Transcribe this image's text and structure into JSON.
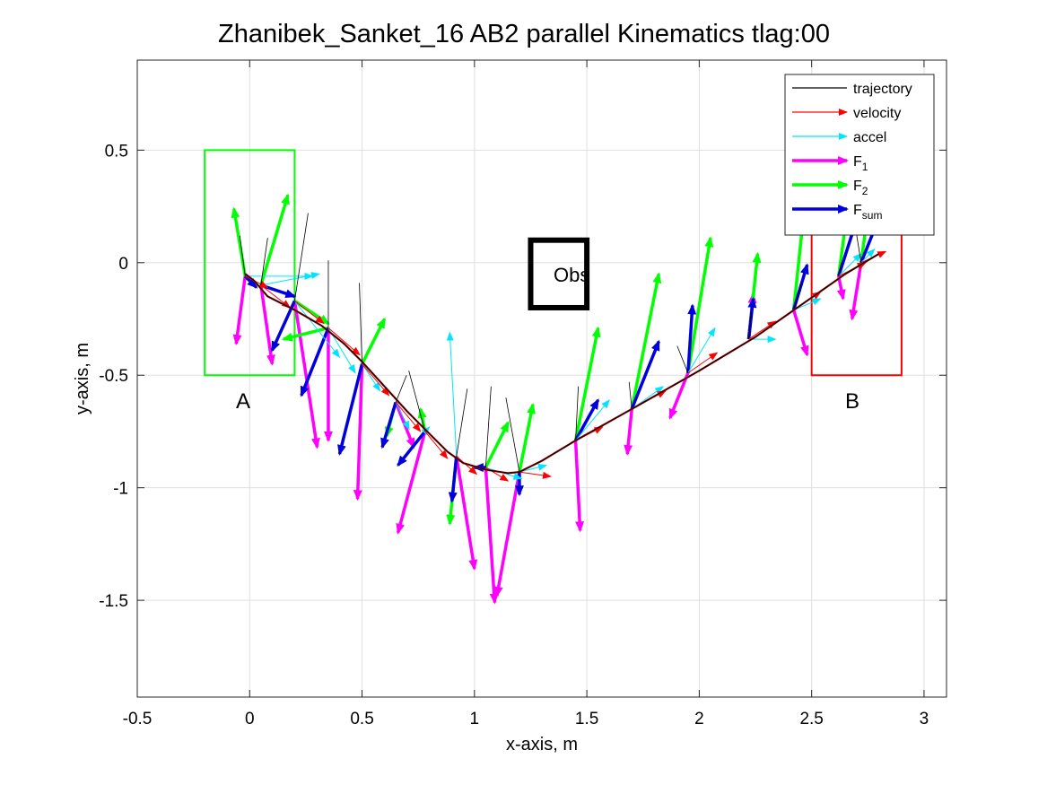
{
  "chart_data": {
    "type": "line",
    "title": "Zhanibek_Sanket_16    AB2    parallel    Kinematics tlag:00",
    "xlabel": "x-axis, m",
    "ylabel": "y-axis, m",
    "xlim": [
      -0.5,
      3.1
    ],
    "ylim": [
      -1.93,
      0.9
    ],
    "xticks": [
      -0.5,
      0,
      0.5,
      1,
      1.5,
      2,
      2.5,
      3
    ],
    "xtick_labels": [
      "-0.5",
      "0",
      "0.5",
      "1",
      "1.5",
      "2",
      "2.5",
      "3"
    ],
    "yticks": [
      -1.5,
      -1,
      -0.5,
      0,
      0.5
    ],
    "ytick_labels": [
      "-1.5",
      "-1",
      "-0.5",
      "0",
      "0.5"
    ],
    "grid": true,
    "legend": {
      "placement": "top-right",
      "entries": [
        {
          "key": "trajectory",
          "label": "trajectory",
          "sub": "",
          "color": "#000000"
        },
        {
          "key": "velocity",
          "label": "velocity",
          "sub": "",
          "color": "#ff0000"
        },
        {
          "key": "accel",
          "label": "accel",
          "sub": "",
          "color": "#00e5ff"
        },
        {
          "key": "F1",
          "label": "F",
          "sub": "1",
          "color": "#ff00ff"
        },
        {
          "key": "F2",
          "label": "F",
          "sub": "2",
          "color": "#00ff00"
        },
        {
          "key": "Fsum",
          "label": "F",
          "sub": "sum",
          "color": "#0000dd"
        }
      ]
    },
    "regions": [
      {
        "name": "start-box",
        "x": [
          -0.2,
          0.2
        ],
        "y": [
          -0.5,
          0.5
        ],
        "color": "#00ff00"
      },
      {
        "name": "goal-box",
        "x": [
          2.5,
          2.9
        ],
        "y": [
          -0.5,
          0.15
        ],
        "color": "#ff0000"
      },
      {
        "name": "obstacle",
        "x": [
          1.25,
          1.5
        ],
        "y": [
          -0.2,
          0.1
        ],
        "color": "#000000"
      }
    ],
    "annotations": [
      {
        "key": "A",
        "text": "A",
        "x": -0.04,
        "y": -0.61
      },
      {
        "key": "B",
        "text": "B",
        "x": 2.66,
        "y": -0.61
      },
      {
        "key": "Obs",
        "text": "Obs",
        "x": 1.36,
        "y": -0.05
      }
    ],
    "trajectory": {
      "x": [
        -0.02,
        0.02,
        0.08,
        0.2,
        0.32,
        0.42,
        0.5,
        0.6,
        0.7,
        0.8,
        0.88,
        0.95,
        1.05,
        1.15,
        1.2,
        1.3,
        1.45,
        1.7,
        2.0,
        2.25,
        2.45,
        2.65,
        2.8
      ],
      "y": [
        -0.05,
        -0.08,
        -0.15,
        -0.21,
        -0.28,
        -0.36,
        -0.44,
        -0.55,
        -0.66,
        -0.76,
        -0.84,
        -0.89,
        -0.92,
        -0.935,
        -0.93,
        -0.88,
        -0.79,
        -0.65,
        -0.48,
        -0.33,
        -0.19,
        -0.05,
        0.04
      ]
    },
    "force_points": {
      "x": [
        -0.02,
        0.05,
        0.2,
        0.35,
        0.5,
        0.65,
        0.78,
        0.92,
        1.05,
        1.2,
        1.45,
        1.7,
        1.95,
        2.22,
        2.42,
        2.62,
        2.72
      ],
      "y": [
        -0.06,
        -0.1,
        -0.17,
        -0.29,
        -0.45,
        -0.62,
        -0.75,
        -0.86,
        -0.91,
        -0.93,
        -0.79,
        -0.65,
        -0.49,
        -0.34,
        -0.21,
        -0.06,
        0.0
      ]
    },
    "vectors": {
      "velocity": {
        "dx": [
          0.1,
          0.13,
          0.13,
          0.14,
          0.12,
          0.11,
          0.1,
          0.09,
          0.1,
          0.14,
          0.12,
          0.15,
          0.13,
          0.12,
          0.12,
          0.12,
          0.11
        ],
        "dy": [
          -0.05,
          -0.1,
          -0.1,
          -0.12,
          -0.14,
          -0.13,
          -0.12,
          -0.08,
          -0.06,
          -0.02,
          0.06,
          0.08,
          0.09,
          0.08,
          0.08,
          0.06,
          0.05
        ]
      },
      "accel": {
        "dx": [
          0.3,
          0.26,
          0.2,
          0.12,
          0.08,
          0.06,
          0.02,
          -0.03,
          0.16,
          0.12,
          0.15,
          0.14,
          0.12,
          0.12,
          0.12,
          0.1,
          0.06
        ],
        "dy": [
          0.0,
          0.05,
          -0.25,
          -0.2,
          -0.12,
          -0.12,
          0.02,
          0.55,
          -0.05,
          0.03,
          0.18,
          0.1,
          0.2,
          0.0,
          0.05,
          0.1,
          0.06
        ]
      },
      "F1": {
        "dx": [
          -0.04,
          0.05,
          0.1,
          0.0,
          -0.02,
          0.08,
          -0.12,
          0.08,
          0.04,
          -0.1,
          0.02,
          -0.02,
          -0.08,
          0.02,
          0.06,
          0.02,
          -0.04
        ],
        "dy": [
          -0.3,
          -0.35,
          -0.65,
          -0.5,
          -0.6,
          -0.2,
          -0.45,
          -0.5,
          -0.6,
          -0.55,
          -0.4,
          -0.2,
          -0.2,
          0.2,
          -0.2,
          -0.1,
          -0.25
        ]
      },
      "F2": {
        "dx": [
          -0.05,
          0.12,
          0.15,
          -0.2,
          0.1,
          -0.04,
          -0.02,
          -0.03,
          0.1,
          0.06,
          0.1,
          0.12,
          0.1,
          0.04,
          0.04,
          0.04,
          0.04
        ],
        "dy": [
          0.3,
          0.4,
          -0.1,
          -0.05,
          0.2,
          -0.15,
          0.1,
          -0.3,
          0.2,
          0.3,
          0.5,
          0.6,
          0.6,
          0.38,
          0.38,
          0.3,
          0.3
        ]
      },
      "Fsum": {
        "dx": [
          0.05,
          0.15,
          -0.1,
          -0.12,
          -0.1,
          -0.06,
          -0.12,
          -0.02,
          -0.05,
          0.0,
          0.1,
          0.12,
          0.02,
          0.02,
          0.06,
          0.08,
          0.1
        ],
        "dy": [
          -0.05,
          -0.05,
          -0.22,
          -0.3,
          -0.4,
          -0.2,
          -0.15,
          -0.2,
          0.0,
          -0.1,
          0.18,
          0.3,
          0.3,
          0.18,
          0.2,
          0.25,
          0.25
        ]
      }
    }
  }
}
